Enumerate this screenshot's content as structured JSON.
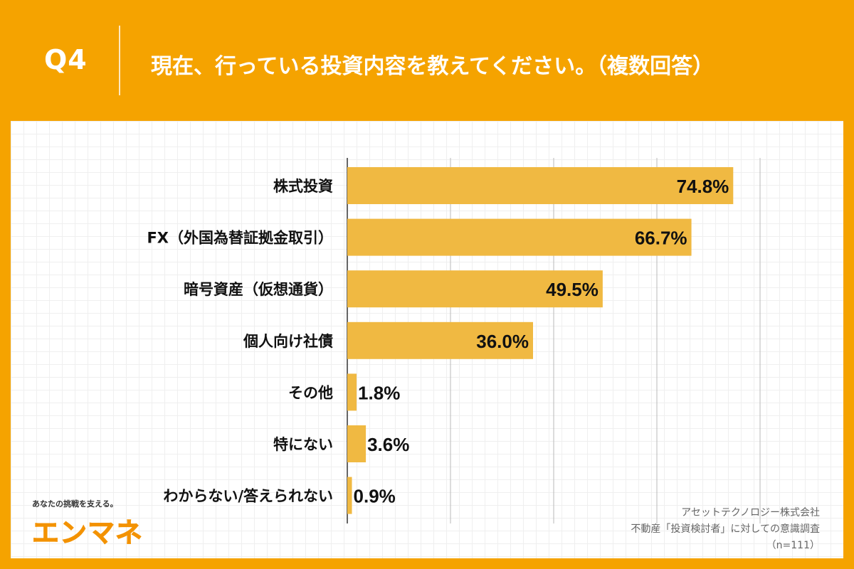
{
  "header": {
    "question": "Q4",
    "title": "現在、行っている投資内容を教えてください。（複数回答）"
  },
  "chart_data": {
    "type": "bar",
    "orientation": "horizontal",
    "categories": [
      "株式投資",
      "FX（外国為替証拠金取引）",
      "暗号資産（仮想通貨）",
      "個人向け社債",
      "その他",
      "特にない",
      "わからない/答えられない"
    ],
    "values": [
      74.8,
      66.7,
      49.5,
      36.0,
      1.8,
      3.6,
      0.9
    ],
    "value_labels": [
      "74.8%",
      "66.7%",
      "49.5%",
      "36.0%",
      "1.8%",
      "3.6%",
      "0.9%"
    ],
    "xlim": [
      0,
      80
    ],
    "grid": true,
    "bar_color": "#F0B942"
  },
  "logo": {
    "tagline": "あなたの挑戦を支える。",
    "name": "エンマネ",
    "color": "#F39200"
  },
  "credit": {
    "company": "アセットテクノロジー株式会社",
    "survey": "不動産「投資検討者」に対しての意識調査",
    "sample": "（n=111）"
  }
}
